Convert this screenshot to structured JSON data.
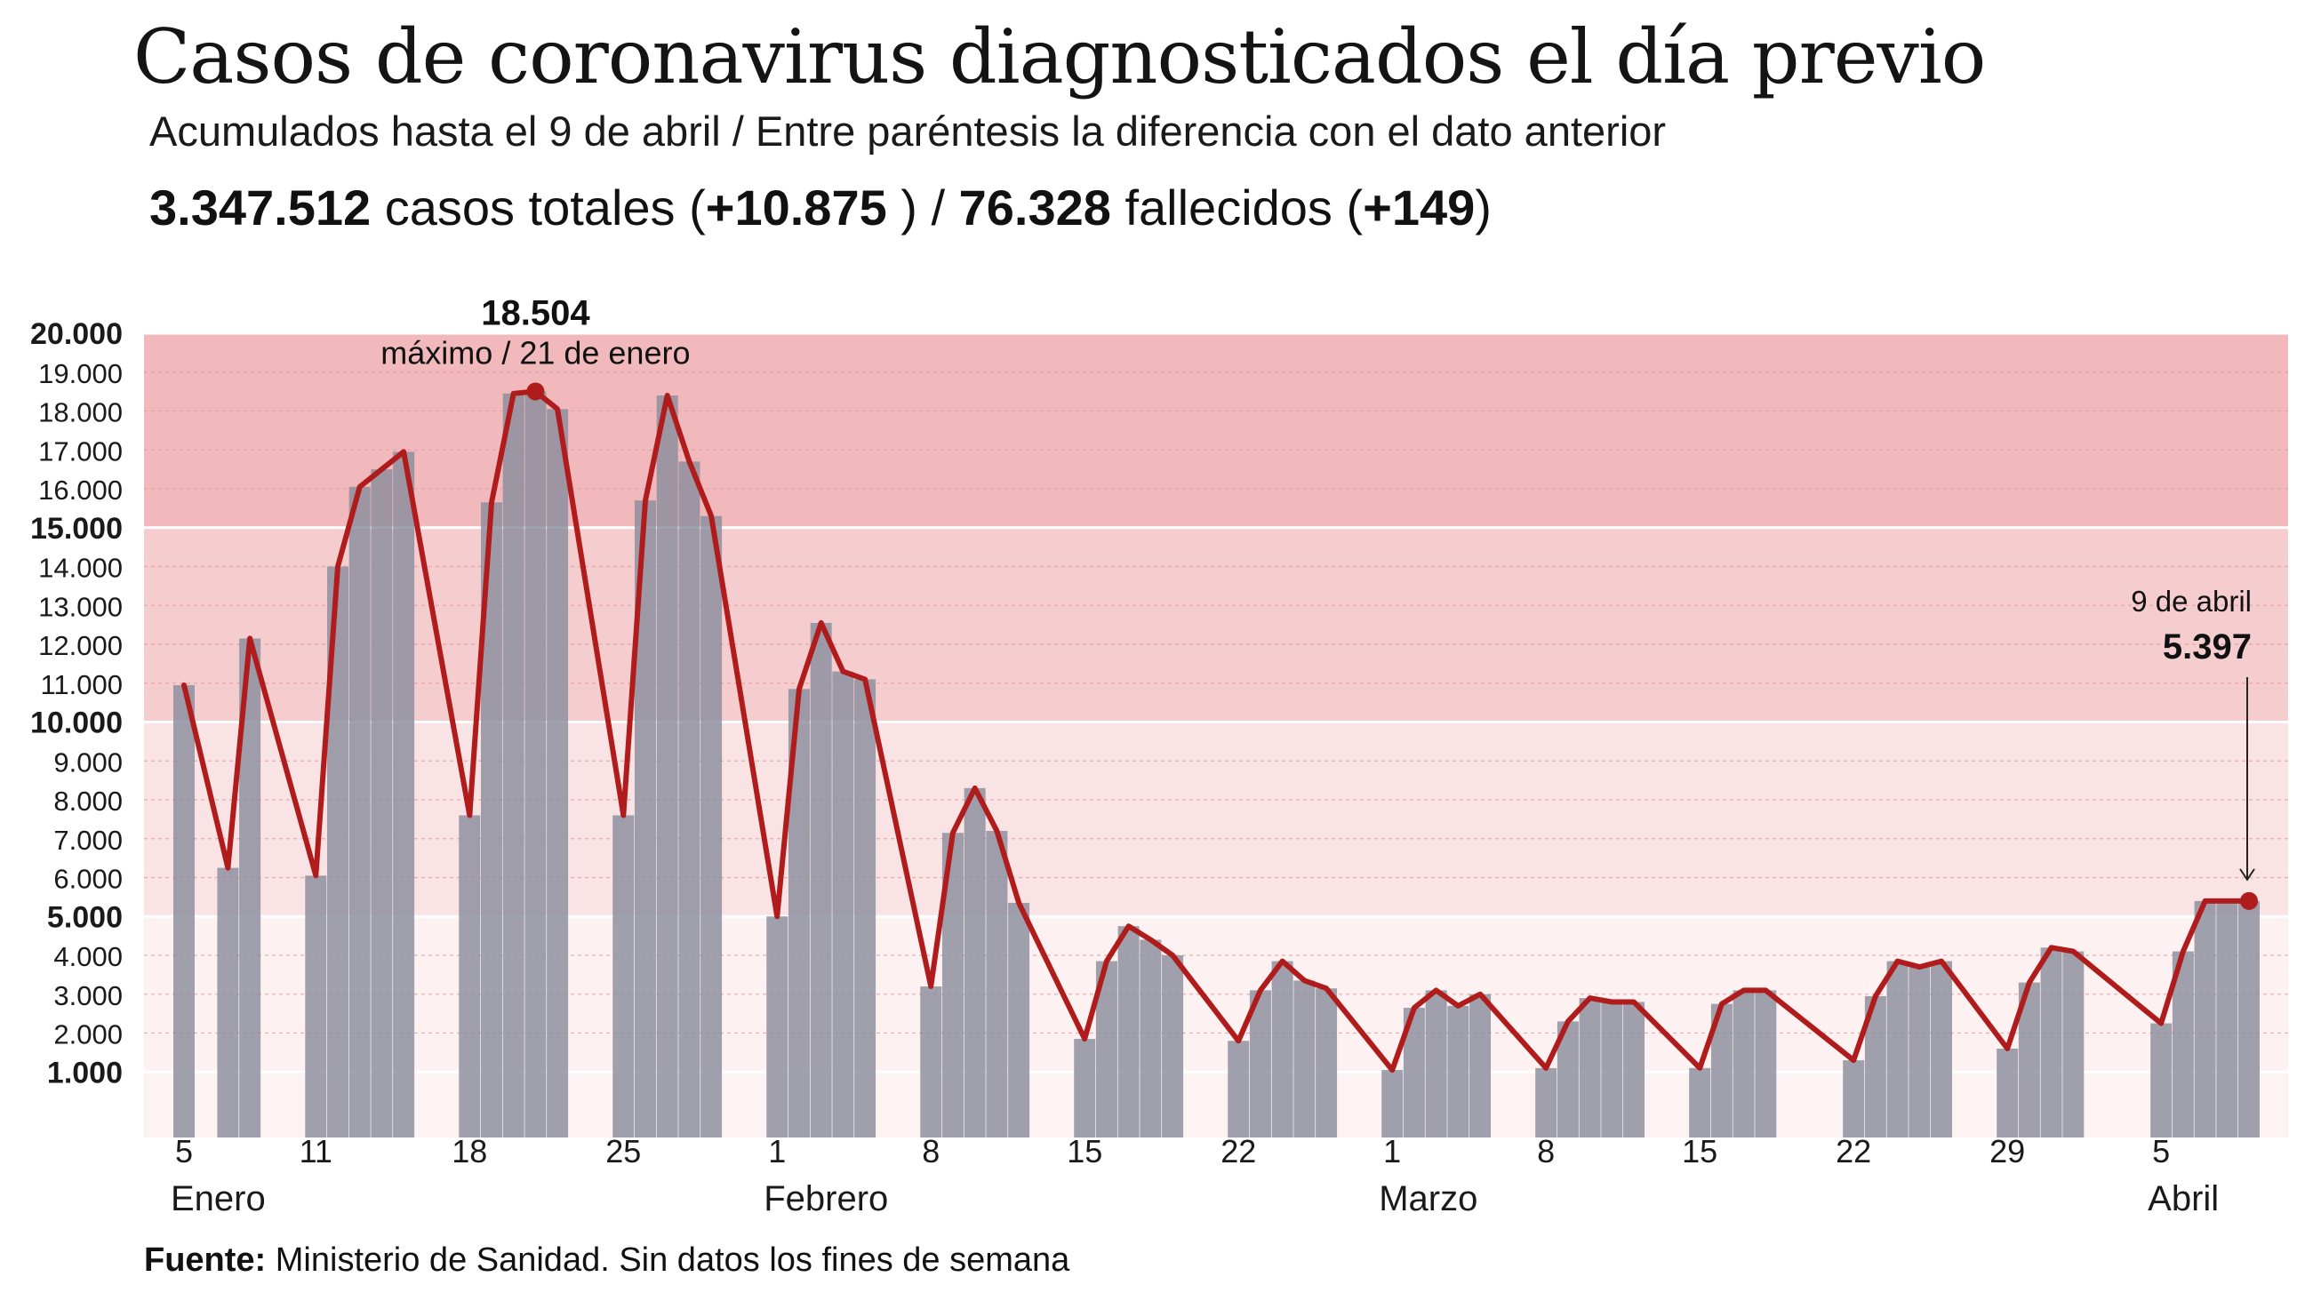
{
  "header": {
    "title": "Casos de coronavirus diagnosticados el día previo",
    "subtitle": "Acumulados hasta el 9 de abril / Entre paréntesis la diferencia con el dato anterior",
    "summary": {
      "total_cases": "3.347.512",
      "total_cases_label": " casos totales (",
      "cases_diff": "+10.875",
      "sep": " ) / ",
      "deaths": "76.328",
      "deaths_label": " fallecidos (",
      "deaths_diff": "+149",
      "close": ")"
    }
  },
  "footer": {
    "source_label": "Fuente:",
    "source_text": " Ministerio de Sanidad. Sin datos los fines de semana"
  },
  "colors": {
    "line": "#b01c1c",
    "bar": "#8a8d9c",
    "band_high": "#f1b9bb",
    "band_mid": "#f6cdcf",
    "band_low": "#fae3e4",
    "band_base": "#fdf1f1"
  },
  "chart_data": {
    "type": "bar",
    "title": "Casos de coronavirus diagnosticados el día previo",
    "ylim": [
      0,
      20000
    ],
    "y_ticks": [
      1000,
      2000,
      3000,
      4000,
      5000,
      6000,
      7000,
      8000,
      9000,
      10000,
      11000,
      12000,
      13000,
      14000,
      15000,
      16000,
      17000,
      18000,
      19000,
      20000
    ],
    "y_tick_labels": [
      "1.000",
      "2.000",
      "3.000",
      "4.000",
      "5.000",
      "6.000",
      "7.000",
      "8.000",
      "9.000",
      "10.000",
      "11.000",
      "12.000",
      "13.000",
      "14.000",
      "15.000",
      "16.000",
      "17.000",
      "18.000",
      "19.000",
      "20.000"
    ],
    "y_bold_ticks": [
      1000,
      5000,
      10000,
      15000,
      20000
    ],
    "bands": [
      {
        "from": 15000,
        "to": 20000,
        "color": "#f1b9bb"
      },
      {
        "from": 10000,
        "to": 15000,
        "color": "#f6cdcf"
      },
      {
        "from": 5000,
        "to": 10000,
        "color": "#fae3e4"
      },
      {
        "from": 1000,
        "to": 5000,
        "color": "#fdf1f1"
      }
    ],
    "x": [
      "2021-01-05",
      "2021-01-07",
      "2021-01-08",
      "2021-01-11",
      "2021-01-12",
      "2021-01-13",
      "2021-01-14",
      "2021-01-15",
      "2021-01-18",
      "2021-01-19",
      "2021-01-20",
      "2021-01-21",
      "2021-01-22",
      "2021-01-25",
      "2021-01-26",
      "2021-01-27",
      "2021-01-28",
      "2021-01-29",
      "2021-02-01",
      "2021-02-02",
      "2021-02-03",
      "2021-02-04",
      "2021-02-05",
      "2021-02-08",
      "2021-02-09",
      "2021-02-10",
      "2021-02-11",
      "2021-02-12",
      "2021-02-15",
      "2021-02-16",
      "2021-02-17",
      "2021-02-18",
      "2021-02-19",
      "2021-02-22",
      "2021-02-23",
      "2021-02-24",
      "2021-02-25",
      "2021-02-26",
      "2021-03-01",
      "2021-03-02",
      "2021-03-03",
      "2021-03-04",
      "2021-03-05",
      "2021-03-08",
      "2021-03-09",
      "2021-03-10",
      "2021-03-11",
      "2021-03-12",
      "2021-03-15",
      "2021-03-16",
      "2021-03-17",
      "2021-03-18",
      "2021-03-22",
      "2021-03-23",
      "2021-03-24",
      "2021-03-25",
      "2021-03-26",
      "2021-03-29",
      "2021-03-30",
      "2021-03-31",
      "2021-04-01",
      "2021-04-05",
      "2021-04-06",
      "2021-04-07",
      "2021-04-08",
      "2021-04-09"
    ],
    "series": [
      {
        "values": [
          10950,
          6250,
          12150,
          6050,
          14000,
          16050,
          16500,
          16950,
          7600,
          15650,
          18450,
          18504,
          18050,
          7600,
          15700,
          18400,
          16700,
          15300,
          5000,
          10850,
          12550,
          11300,
          11100,
          3200,
          7150,
          8300,
          7200,
          5350,
          1850,
          3850,
          4750,
          4400,
          4000,
          1800,
          3100,
          3850,
          3350,
          3150,
          1050,
          2650,
          3100,
          2700,
          3000,
          1100,
          2300,
          2900,
          2800,
          2800,
          1100,
          2750,
          3100,
          3100,
          1300,
          2950,
          3850,
          3700,
          3850,
          1600,
          3300,
          4200,
          4100,
          2250,
          4100,
          5397,
          5397,
          5397
        ]
      }
    ],
    "x_tick_labels": [
      {
        "date": "2021-01-05",
        "label": "5"
      },
      {
        "date": "2021-01-11",
        "label": "11"
      },
      {
        "date": "2021-01-18",
        "label": "18"
      },
      {
        "date": "2021-01-25",
        "label": "25"
      },
      {
        "date": "2021-02-01",
        "label": "1"
      },
      {
        "date": "2021-02-08",
        "label": "8"
      },
      {
        "date": "2021-02-15",
        "label": "15"
      },
      {
        "date": "2021-02-22",
        "label": "22"
      },
      {
        "date": "2021-03-01",
        "label": "1"
      },
      {
        "date": "2021-03-08",
        "label": "8"
      },
      {
        "date": "2021-03-15",
        "label": "15"
      },
      {
        "date": "2021-03-22",
        "label": "22"
      },
      {
        "date": "2021-03-29",
        "label": "29"
      },
      {
        "date": "2021-04-05",
        "label": "5"
      }
    ],
    "month_labels": [
      {
        "date": "2021-01-05",
        "label": "Enero"
      },
      {
        "date": "2021-02-01",
        "label": "Febrero"
      },
      {
        "date": "2021-03-01",
        "label": "Marzo"
      },
      {
        "date": "2021-04-05",
        "label": "Abril"
      }
    ],
    "annotations": {
      "max": {
        "date": "2021-01-21",
        "value_label": "18.504",
        "text": "máximo / 21 de enero"
      },
      "last": {
        "date": "2021-04-09",
        "date_label": "9 de abril",
        "value_label": "5.397"
      }
    }
  }
}
